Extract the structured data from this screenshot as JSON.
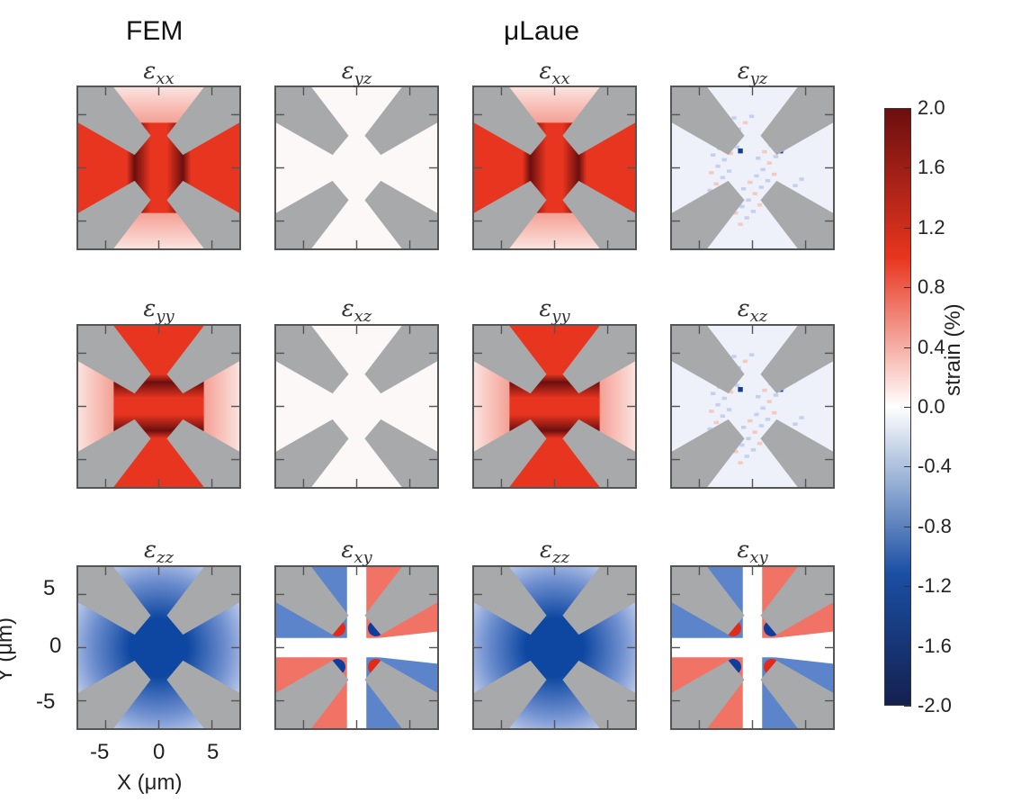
{
  "chart_data": {
    "type": "heatmap",
    "column_headers": {
      "fem": "FEM",
      "laue": "μLaue"
    },
    "panels": [
      {
        "symbol": "ε",
        "sub": "xx",
        "source": "FEM",
        "pattern": "xx"
      },
      {
        "symbol": "ε",
        "sub": "yz",
        "source": "FEM",
        "pattern": "zero"
      },
      {
        "symbol": "ε",
        "sub": "xx",
        "source": "μLaue",
        "pattern": "xx"
      },
      {
        "symbol": "ε",
        "sub": "yz",
        "source": "μLaue",
        "pattern": "noise"
      },
      {
        "symbol": "ε",
        "sub": "yy",
        "source": "FEM",
        "pattern": "yy"
      },
      {
        "symbol": "ε",
        "sub": "xz",
        "source": "FEM",
        "pattern": "zero"
      },
      {
        "symbol": "ε",
        "sub": "yy",
        "source": "μLaue",
        "pattern": "yy"
      },
      {
        "symbol": "ε",
        "sub": "xz",
        "source": "μLaue",
        "pattern": "noise"
      },
      {
        "symbol": "ε",
        "sub": "zz",
        "source": "FEM",
        "pattern": "zz"
      },
      {
        "symbol": "ε",
        "sub": "xy",
        "source": "FEM",
        "pattern": "xy"
      },
      {
        "symbol": "ε",
        "sub": "zz",
        "source": "μLaue",
        "pattern": "zz"
      },
      {
        "symbol": "ε",
        "sub": "xy",
        "source": "μLaue",
        "pattern": "xy"
      }
    ],
    "x_axis": {
      "label": "X (μm)",
      "ticks": [
        "-5",
        "0",
        "5"
      ],
      "range": [
        -7.5,
        7.5
      ]
    },
    "y_axis": {
      "label": "Y (μm)",
      "ticks": [
        "5",
        "0",
        "-5"
      ],
      "range": [
        -7.5,
        7.5
      ]
    },
    "colorbar": {
      "label": "strain (%)",
      "range": [
        -2.0,
        2.0
      ],
      "ticks": [
        "2.0",
        "1.6",
        "1.2",
        "0.8",
        "0.4",
        "0.0",
        "-0.4",
        "-0.8",
        "-1.2",
        "-1.6",
        "-2.0"
      ],
      "colors": {
        "max": "#6b0f0f",
        "high": "#e8351f",
        "mid": "#ffffff",
        "low": "#1a4fa3",
        "min": "#14204f"
      }
    },
    "mask_color": "#a7a9aa"
  }
}
